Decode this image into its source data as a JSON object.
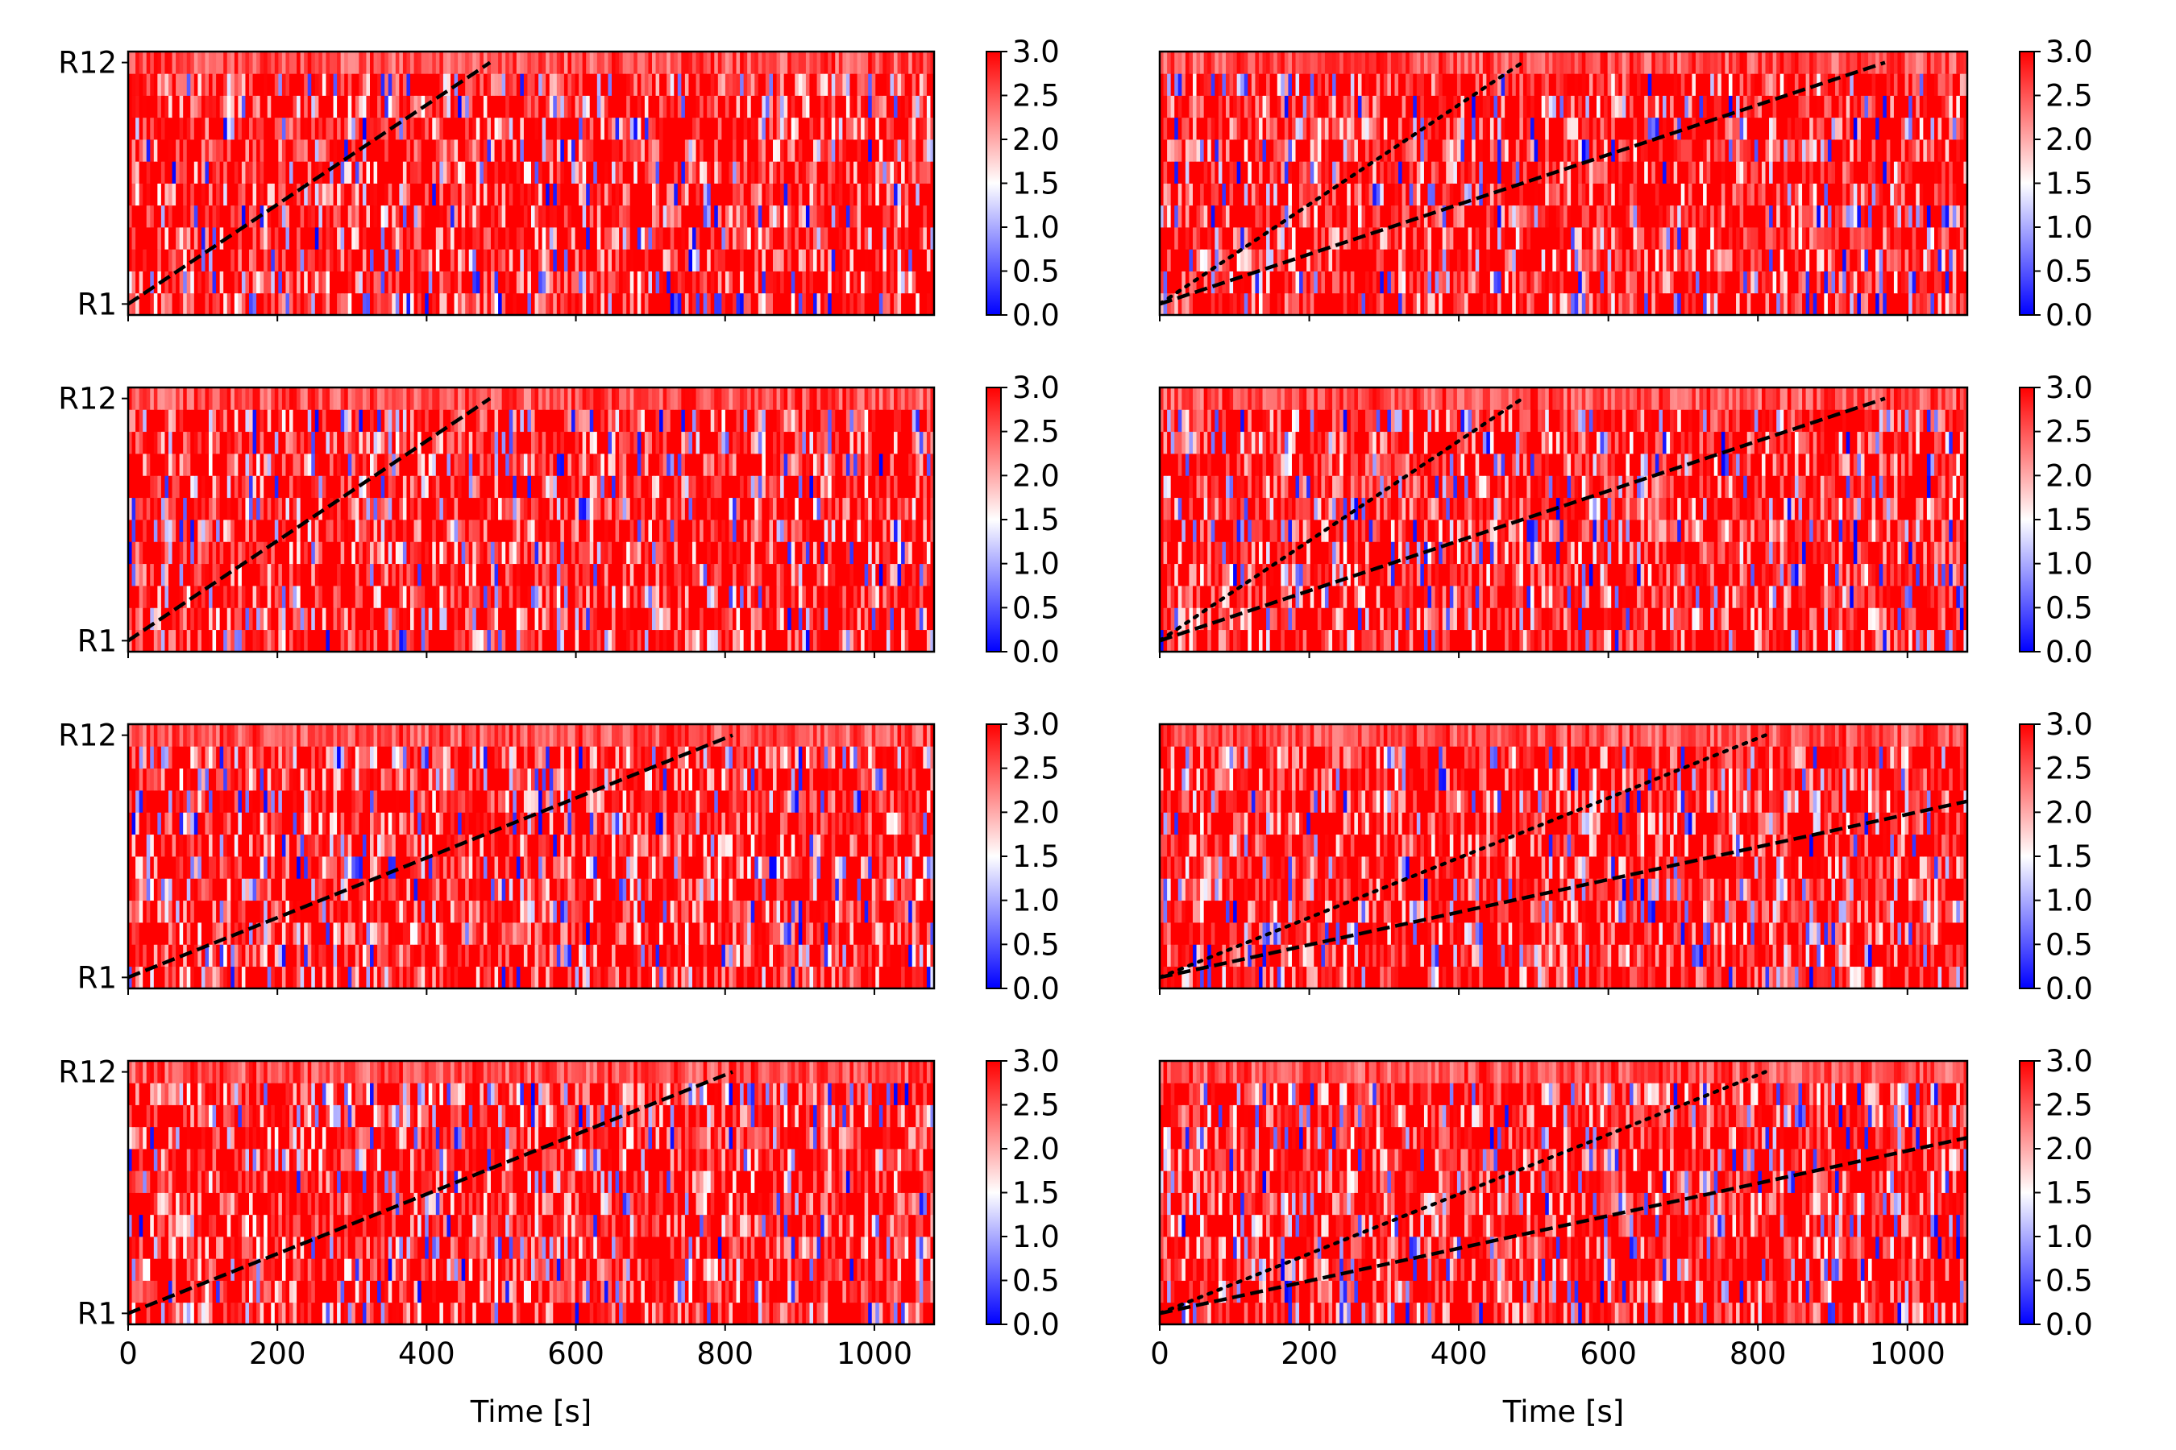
{
  "chart_data": [
    {
      "panel": "left-1",
      "type": "heatmap",
      "rows": [
        "R1",
        "R12"
      ],
      "xlim": [
        0,
        1080
      ],
      "clim": [
        0,
        3
      ],
      "colormap": "bwr",
      "dashed_line": {
        "x": [
          0,
          485
        ],
        "y": [
          1,
          12
        ]
      },
      "dotted_line": null
    },
    {
      "panel": "right-1",
      "type": "heatmap",
      "rows": [
        "R1",
        "R12"
      ],
      "xlim": [
        0,
        1080
      ],
      "clim": [
        0,
        3
      ],
      "colormap": "bwr",
      "dashed_line": {
        "x": [
          0,
          970
        ],
        "y": [
          1,
          12
        ]
      },
      "dotted_line": {
        "x": [
          0,
          485
        ],
        "y": [
          1,
          12
        ]
      }
    },
    {
      "panel": "left-2",
      "type": "heatmap",
      "rows": [
        "R1",
        "R12"
      ],
      "xlim": [
        0,
        1080
      ],
      "clim": [
        0,
        3
      ],
      "colormap": "bwr",
      "dashed_line": {
        "x": [
          0,
          485
        ],
        "y": [
          1,
          12
        ]
      },
      "dotted_line": null
    },
    {
      "panel": "right-2",
      "type": "heatmap",
      "rows": [
        "R1",
        "R12"
      ],
      "xlim": [
        0,
        1080
      ],
      "clim": [
        0,
        3
      ],
      "colormap": "bwr",
      "dashed_line": {
        "x": [
          0,
          970
        ],
        "y": [
          1,
          12
        ]
      },
      "dotted_line": {
        "x": [
          0,
          485
        ],
        "y": [
          1,
          12
        ]
      }
    },
    {
      "panel": "left-3",
      "type": "heatmap",
      "rows": [
        "R1",
        "R12"
      ],
      "xlim": [
        0,
        1080
      ],
      "clim": [
        0,
        3
      ],
      "colormap": "bwr",
      "dashed_line": {
        "x": [
          0,
          810
        ],
        "y": [
          1,
          12
        ]
      },
      "dotted_line": null
    },
    {
      "panel": "right-3",
      "type": "heatmap",
      "rows": [
        "R1",
        "R12"
      ],
      "xlim": [
        0,
        1080
      ],
      "clim": [
        0,
        3
      ],
      "colormap": "bwr",
      "dashed_line": {
        "x": [
          0,
          1080
        ],
        "y": [
          1,
          9
        ]
      },
      "dotted_line": {
        "x": [
          0,
          810
        ],
        "y": [
          1,
          12
        ]
      }
    },
    {
      "panel": "left-4",
      "type": "heatmap",
      "rows": [
        "R1",
        "R12"
      ],
      "xlim": [
        0,
        1080
      ],
      "clim": [
        0,
        3
      ],
      "colormap": "bwr",
      "dashed_line": {
        "x": [
          0,
          810
        ],
        "y": [
          1,
          12
        ]
      },
      "dotted_line": null
    },
    {
      "panel": "right-4",
      "type": "heatmap",
      "rows": [
        "R1",
        "R12"
      ],
      "xlim": [
        0,
        1080
      ],
      "clim": [
        0,
        3
      ],
      "colormap": "bwr",
      "dashed_line": {
        "x": [
          0,
          1080
        ],
        "y": [
          1,
          9
        ]
      },
      "dotted_line": {
        "x": [
          0,
          810
        ],
        "y": [
          1,
          12
        ]
      }
    }
  ],
  "labels": {
    "xlabel": "Time [s]",
    "y_top": "R12",
    "y_bottom": "R1",
    "x_ticks": [
      "0",
      "200",
      "400",
      "600",
      "800",
      "1000"
    ],
    "cbar_ticks": [
      "0.0",
      "0.5",
      "1.0",
      "1.5",
      "2.0",
      "2.5",
      "3.0"
    ]
  },
  "colors": {
    "low": "#0000ff",
    "mid": "#ffffff",
    "high": "#ff0000",
    "line": "#000000"
  }
}
